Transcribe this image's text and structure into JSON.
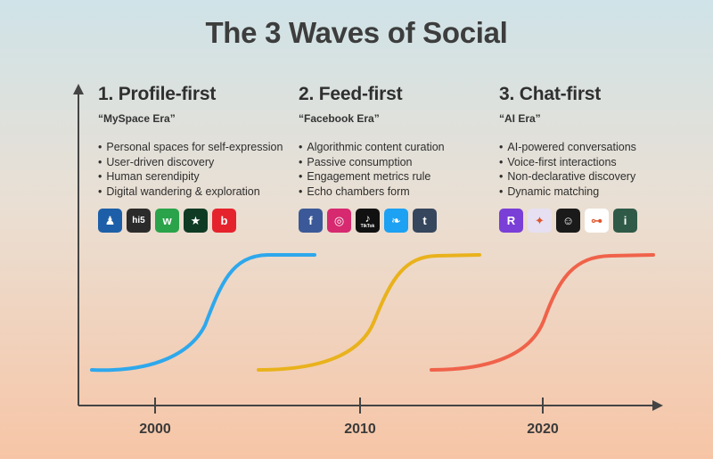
{
  "title": "The 3 Waves of Social",
  "waves": [
    {
      "heading": "1. Profile-first",
      "era": "“MySpace Era”",
      "bullets": [
        "Personal spaces for self-expression",
        "User-driven discovery",
        "Human serendipity",
        "Digital wandering & exploration"
      ],
      "icons": [
        {
          "name": "myspace-icon",
          "glyph": "♟",
          "bg": "#1c5fa8"
        },
        {
          "name": "hi5-icon",
          "glyph": "hi5",
          "bg": "#2b2b2b"
        },
        {
          "name": "meetup-icon",
          "glyph": "w",
          "bg": "#2aa34a"
        },
        {
          "name": "xanga-icon",
          "glyph": "★",
          "bg": "#0f3b24"
        },
        {
          "name": "bebo-icon",
          "glyph": "b",
          "bg": "#e5232c"
        }
      ],
      "color": "#2ea8ec"
    },
    {
      "heading": "2. Feed-first",
      "era": "“Facebook Era”",
      "bullets": [
        "Algorithmic content curation",
        "Passive consumption",
        "Engagement metrics rule",
        "Echo chambers form"
      ],
      "icons": [
        {
          "name": "facebook-icon",
          "glyph": "f",
          "bg": "#3b5998"
        },
        {
          "name": "instagram-icon",
          "glyph": "◎",
          "bg": "#d6296f"
        },
        {
          "name": "tiktok-icon",
          "glyph": "♪",
          "bg": "#111111",
          "caption": "TikTok"
        },
        {
          "name": "twitter-icon",
          "glyph": "❧",
          "bg": "#1da1f2"
        },
        {
          "name": "tumblr-icon",
          "glyph": "t",
          "bg": "#36465d"
        }
      ],
      "color": "#e9b21c"
    },
    {
      "heading": "3. Chat-first",
      "era": "“AI Era”",
      "bullets": [
        "AI-powered conversations",
        "Voice-first interactions",
        "Non-declarative discovery",
        "Dynamic matching"
      ],
      "icons": [
        {
          "name": "replika-icon",
          "glyph": "R",
          "bg": "#7a3fd6"
        },
        {
          "name": "character-ai-icon",
          "glyph": "✦",
          "bg": "#e6e0f2"
        },
        {
          "name": "pixel-avatar-icon",
          "glyph": "☺",
          "bg": "#1a1a1a"
        },
        {
          "name": "ee-logo-icon",
          "glyph": "⊶",
          "bg": "#ffffff"
        },
        {
          "name": "info-i-icon",
          "glyph": "i",
          "bg": "#2f5a48"
        }
      ],
      "color": "#f0624a"
    }
  ],
  "chart_data": {
    "type": "line",
    "x_ticks": [
      "2000",
      "2010",
      "2020"
    ],
    "series_colors": [
      "#2ea8ec",
      "#e9b21c",
      "#f0624a"
    ]
  }
}
